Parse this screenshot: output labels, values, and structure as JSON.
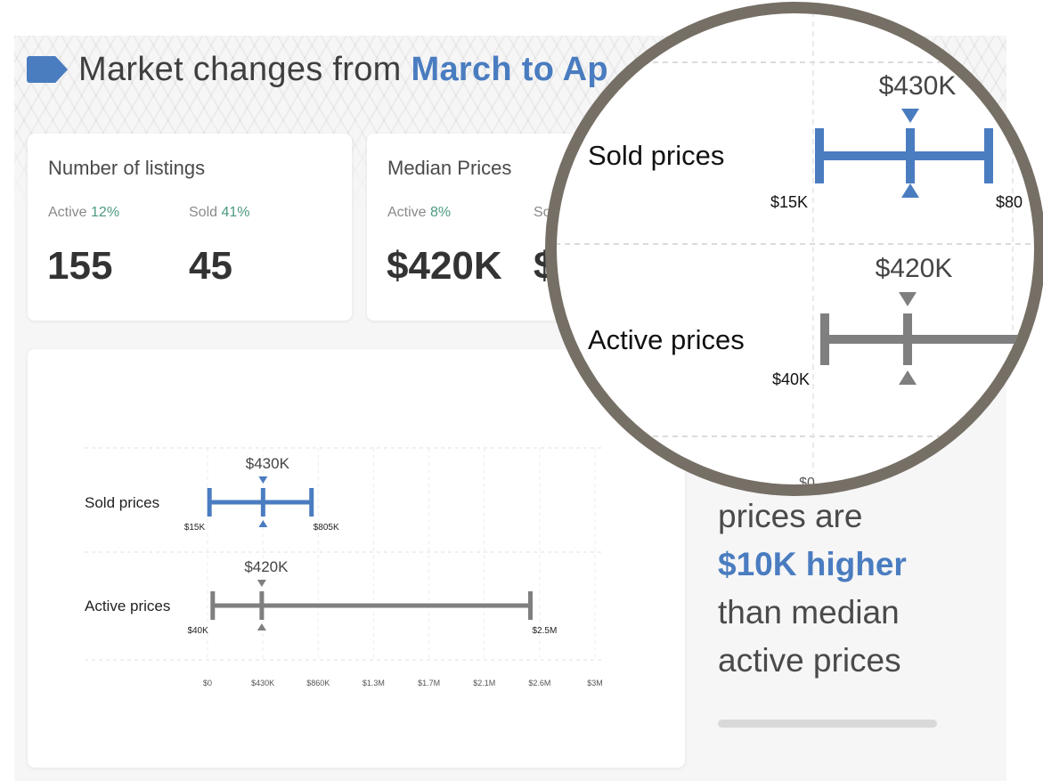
{
  "header": {
    "title_prefix": "Market changes from ",
    "title_highlight": "March to Ap"
  },
  "cards": {
    "listings": {
      "title": "Number of listings",
      "active_label": "Active",
      "active_pct": "12%",
      "sold_label": "Sold",
      "sold_pct": "41%",
      "active_value": "155",
      "sold_value": "45"
    },
    "median": {
      "title": "Median Prices",
      "active_label": "Active",
      "active_pct": "8%",
      "sold_label_partial": "So",
      "active_value": "$420K",
      "sold_value_partial": "$"
    }
  },
  "chart_data": {
    "type": "range",
    "xaxis_ticks": [
      "$0",
      "$430K",
      "$860K",
      "$1.3M",
      "$1.7M",
      "$2.1M",
      "$2.6M",
      "$3M"
    ],
    "xlim": [
      0,
      3000000
    ],
    "series": [
      {
        "name": "Sold prices",
        "min": 15000,
        "median": 430000,
        "max": 805000,
        "min_label": "$15K",
        "median_label": "$430K",
        "max_label": "$805K",
        "color": "#4a7cc0"
      },
      {
        "name": "Active prices",
        "min": 40000,
        "median": 420000,
        "max": 2500000,
        "min_label": "$40K",
        "median_label": "$420K",
        "max_label": "$2.5M",
        "color": "#7f7f7f"
      }
    ]
  },
  "magnifier": {
    "sold_label": "Sold prices",
    "sold_median": "$430K",
    "sold_min": "$15K",
    "sold_max_partial": "$80",
    "active_label": "Active prices",
    "active_median": "$420K",
    "active_min": "$40K",
    "axis_zero": "$0"
  },
  "insight": {
    "line1": "prices are",
    "highlight": "$10K higher",
    "line3": "than median",
    "line4": "active prices"
  }
}
